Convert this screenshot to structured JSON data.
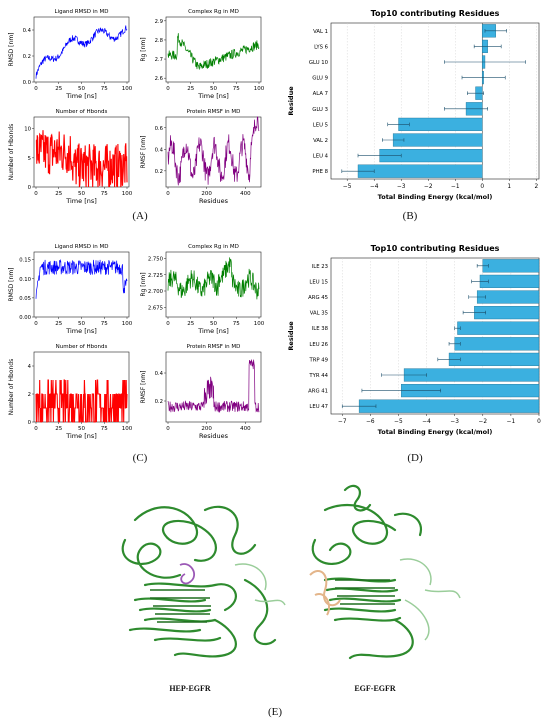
{
  "panels": {
    "A": {
      "label": "(A)",
      "subplots": [
        {
          "key": "a1",
          "title": "Ligand RMSD in MD",
          "xlabel": "Time [ns]",
          "ylabel": "RMSD [nm]",
          "color": "#0000ff",
          "xticks": [
            "0",
            "25",
            "50",
            "75",
            "100"
          ],
          "yticks": [
            "0.0",
            "0.2",
            "0.4"
          ],
          "yrange": [
            0,
            0.5
          ]
        },
        {
          "key": "a2",
          "title": "Complex Rg in MD",
          "xlabel": "Time [ns]",
          "ylabel": "Rg [nm]",
          "color": "#008000",
          "xticks": [
            "0",
            "25",
            "50",
            "75",
            "100"
          ],
          "yticks": [
            "2.6",
            "2.7",
            "2.8",
            "2.9"
          ],
          "yrange": [
            2.58,
            2.92
          ]
        },
        {
          "key": "a3",
          "title": "Number of Hbonds",
          "xlabel": "Time [ns]",
          "ylabel": "Number of Hbonds",
          "color": "#ff0000",
          "xticks": [
            "0",
            "25",
            "50",
            "75",
            "100"
          ],
          "yticks": [
            "0",
            "5",
            "10"
          ],
          "yrange": [
            0,
            12
          ]
        },
        {
          "key": "a4",
          "title": "Protein RMSF in MD",
          "xlabel": "Residues",
          "ylabel": "RMSF [nm]",
          "color": "#800080",
          "xticks": [
            "0",
            "200",
            "400"
          ],
          "yticks": [
            "0.2",
            "0.4",
            "0.6"
          ],
          "yrange": [
            0.05,
            0.7
          ]
        }
      ]
    },
    "C": {
      "label": "(C)",
      "subplots": [
        {
          "key": "c1",
          "title": "Ligand RMSD in MD",
          "xlabel": "Time [ns]",
          "ylabel": "RMSD [nm]",
          "color": "#0000ff",
          "xticks": [
            "0",
            "25",
            "50",
            "75",
            "100"
          ],
          "yticks": [
            "0.00",
            "0.05",
            "0.10",
            "0.15"
          ],
          "yrange": [
            0,
            0.17
          ]
        },
        {
          "key": "c2",
          "title": "Complex Rg in MD",
          "xlabel": "Time [ns]",
          "ylabel": "Rg [nm]",
          "color": "#008000",
          "xticks": [
            "0",
            "25",
            "50",
            "75",
            "100"
          ],
          "yticks": [
            "2.675",
            "2.700",
            "2.725",
            "2.750"
          ],
          "yrange": [
            2.66,
            2.76
          ]
        },
        {
          "key": "c3",
          "title": "Number of Hbonds",
          "xlabel": "Time [ns]",
          "ylabel": "Number of Hbonds",
          "color": "#ff0000",
          "xticks": [
            "0",
            "25",
            "50",
            "75",
            "100"
          ],
          "yticks": [
            "0",
            "2",
            "4"
          ],
          "yrange": [
            0,
            5
          ]
        },
        {
          "key": "c4",
          "title": "Protein RMSF in MD",
          "xlabel": "Residues",
          "ylabel": "RMSF [nm]",
          "color": "#800080",
          "xticks": [
            "0",
            "200",
            "400"
          ],
          "yticks": [
            "0.2",
            "0.4"
          ],
          "yrange": [
            0.05,
            0.55
          ]
        }
      ]
    },
    "B": {
      "label": "(B)"
    },
    "D": {
      "label": "(D)"
    },
    "E": {
      "label": "(E)",
      "structures": [
        "HEP-EGFR",
        "EGF-EGFR"
      ]
    }
  },
  "chart_data": [
    {
      "type": "bar",
      "orientation": "horizontal",
      "title": "Top10 contributing Residues",
      "xlabel": "Total Binding Energy (kcal/mol)",
      "ylabel": "Residue",
      "xlim": [
        -5.6,
        2.1
      ],
      "xticks": [
        "−5",
        "−4",
        "−3",
        "−2",
        "−1",
        "0",
        "1",
        "2"
      ],
      "bar_color": "#3bb0e0",
      "categories": [
        "VAL 1",
        "LYS 6",
        "GLU 10",
        "GLU 9",
        "ALA 7",
        "GLU 3",
        "LEU 5",
        "VAL 2",
        "LEU 4",
        "PHE 8"
      ],
      "values": [
        0.5,
        0.2,
        0.1,
        0.05,
        -0.25,
        -0.6,
        -3.1,
        -3.3,
        -3.8,
        -4.6
      ],
      "errors": [
        0.4,
        0.5,
        1.5,
        0.8,
        0.3,
        0.8,
        0.4,
        0.4,
        0.8,
        0.6
      ]
    },
    {
      "type": "bar",
      "orientation": "horizontal",
      "title": "Top10 contributing Residues",
      "xlabel": "Total Binding Energy (kcal/mol)",
      "ylabel": "Residue",
      "xlim": [
        -7.4,
        0
      ],
      "xticks": [
        "−7",
        "−6",
        "−5",
        "−4",
        "−3",
        "−2",
        "−1",
        "0"
      ],
      "bar_color": "#3bb0e0",
      "categories": [
        "ILE 23",
        "LEU 15",
        "ARG 45",
        "VAL 35",
        "ILE 38",
        "LEU 26",
        "TRP 49",
        "TYR 44",
        "ARG 41",
        "LEU 47"
      ],
      "values": [
        -2.0,
        -2.1,
        -2.2,
        -2.3,
        -2.9,
        -3.0,
        -3.2,
        -4.8,
        -4.9,
        -6.4
      ],
      "errors": [
        0.2,
        0.3,
        0.3,
        0.4,
        0.1,
        0.2,
        0.4,
        0.8,
        1.4,
        0.6
      ]
    }
  ]
}
